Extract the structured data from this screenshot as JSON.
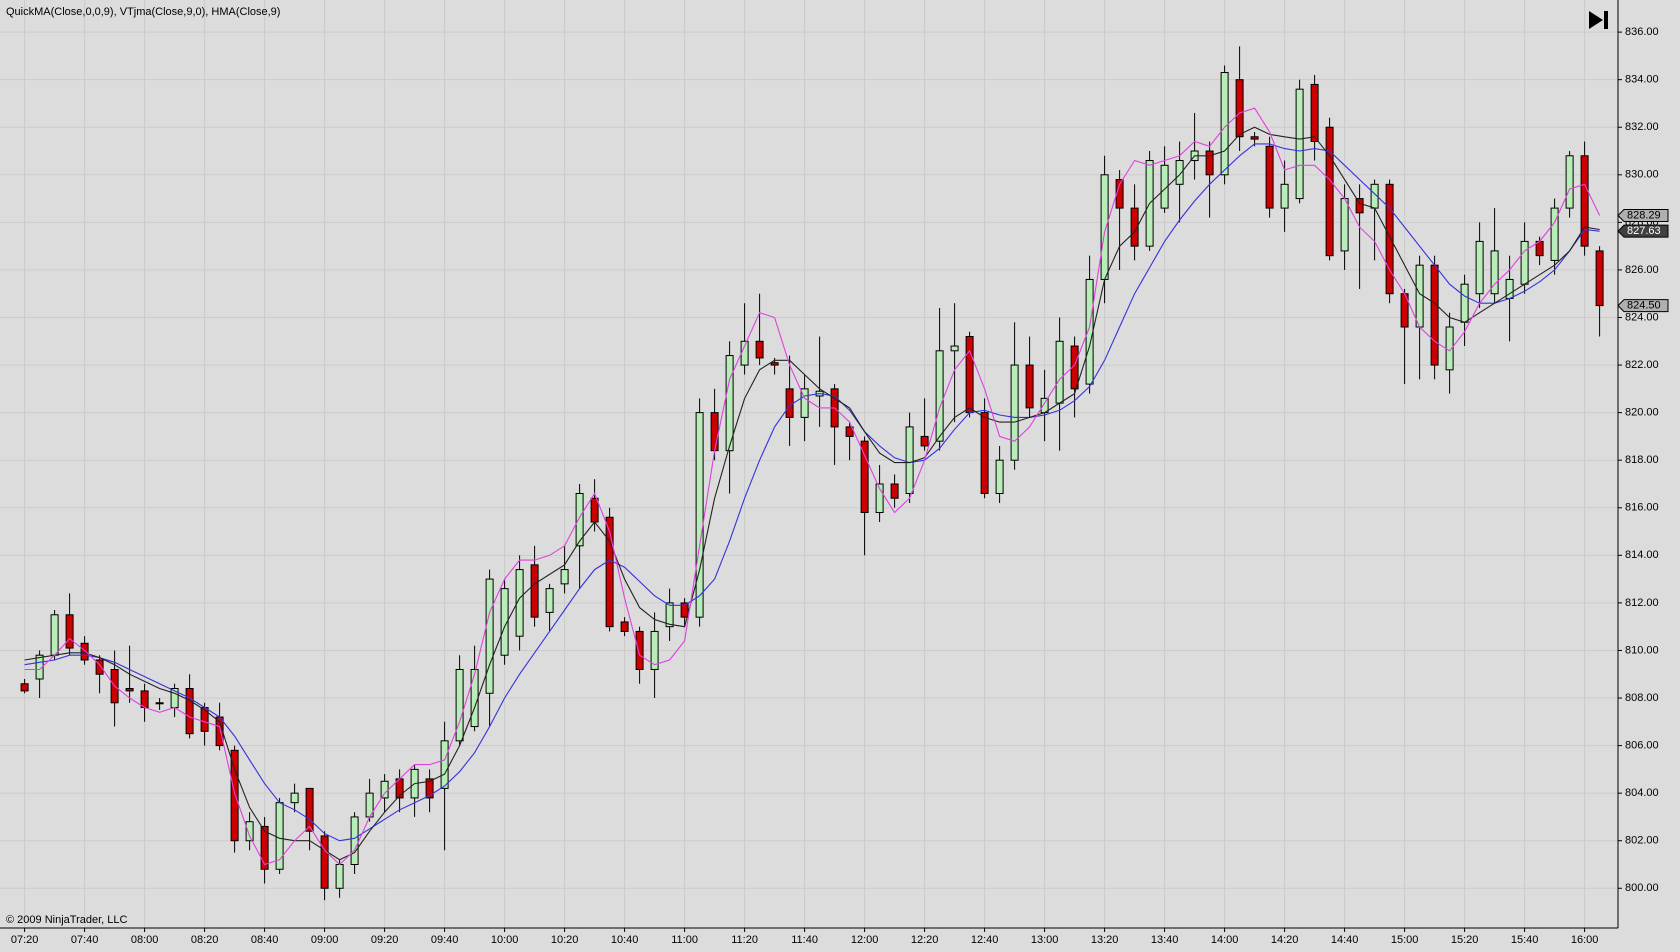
{
  "chart_data": {
    "type": "candlestick",
    "title": "QuickMA(Close,0,0,9), VTjma(Close,9,0), HMA(Close,9)",
    "copyright": "© 2009 NinjaTrader, LLC",
    "categories": [
      "07:20",
      null,
      null,
      null,
      "07:40",
      null,
      null,
      null,
      "08:00",
      null,
      null,
      null,
      "08:20",
      null,
      null,
      null,
      "08:40",
      null,
      null,
      null,
      "09:00",
      null,
      null,
      null,
      "09:20",
      null,
      null,
      null,
      "09:40",
      null,
      null,
      null,
      "10:00",
      null,
      null,
      null,
      "10:20",
      null,
      null,
      null,
      "10:40",
      null,
      null,
      null,
      "11:00",
      null,
      null,
      null,
      "11:20",
      null,
      null,
      null,
      "11:40",
      null,
      null,
      null,
      "12:00",
      null,
      null,
      null,
      "12:20",
      null,
      null,
      null,
      "12:40",
      null,
      null,
      null,
      "13:00",
      null,
      null,
      null,
      "13:20",
      null,
      null,
      null,
      "13:40",
      null,
      null,
      null,
      "14:00",
      null,
      null,
      null,
      "14:20",
      null,
      null,
      null,
      "14:40",
      null,
      null,
      null,
      "15:00",
      null,
      null,
      null,
      "15:20",
      null,
      null,
      null,
      "15:40",
      null,
      null,
      null,
      "16:00",
      null
    ],
    "open": [
      808.6,
      808.8,
      809.8,
      811.5,
      810.3,
      809.6,
      809.2,
      808.4,
      808.3,
      807.8,
      807.6,
      808.4,
      807.6,
      807.2,
      805.8,
      802.0,
      802.6,
      800.8,
      803.6,
      804.2,
      802.2,
      800.0,
      801.0,
      803.0,
      803.8,
      804.6,
      803.8,
      804.6,
      804.2,
      806.2,
      806.8,
      808.2,
      809.8,
      810.6,
      813.6,
      811.6,
      812.8,
      814.4,
      816.4,
      815.6,
      811.2,
      810.8,
      809.2,
      811.0,
      812.0,
      811.4,
      820.0,
      818.4,
      822.0,
      823.0,
      822.1,
      821.0,
      819.8,
      820.7,
      821.0,
      819.4,
      818.8,
      815.8,
      817.0,
      816.6,
      819.0,
      818.8,
      822.6,
      823.2,
      820.0,
      816.6,
      818.0,
      822.0,
      820.0,
      820.4,
      822.8,
      821.2,
      825.6,
      829.8,
      828.6,
      827.0,
      828.6,
      829.6,
      830.6,
      831.0,
      830.0,
      834.0,
      831.6,
      831.2,
      828.6,
      829.0,
      833.8,
      832.0,
      826.8,
      829.0,
      828.6,
      829.6,
      825.0,
      823.6,
      826.2,
      821.8,
      823.8,
      825.0,
      825.0,
      824.8,
      825.4,
      827.2,
      826.4,
      828.6,
      830.8,
      826.8
    ],
    "high": [
      808.8,
      810.0,
      811.7,
      812.4,
      810.6,
      809.8,
      810.0,
      810.2,
      808.6,
      808.0,
      808.6,
      809.0,
      807.8,
      807.8,
      806.0,
      803.2,
      803.0,
      803.8,
      804.4,
      804.2,
      802.4,
      801.2,
      803.2,
      804.6,
      804.8,
      805.0,
      805.2,
      805.0,
      807.0,
      809.8,
      810.2,
      813.4,
      813.0,
      814.0,
      814.4,
      812.8,
      814.4,
      817.0,
      817.2,
      816.0,
      811.4,
      811.0,
      811.6,
      812.6,
      812.2,
      820.6,
      821.0,
      823.0,
      824.6,
      825.0,
      822.3,
      822.4,
      821.6,
      823.2,
      821.2,
      819.6,
      819.0,
      817.8,
      817.4,
      820.0,
      820.6,
      824.4,
      824.6,
      823.4,
      820.6,
      818.6,
      823.8,
      823.2,
      821.8,
      824.0,
      823.2,
      826.6,
      830.8,
      830.2,
      829.6,
      831.0,
      831.2,
      831.4,
      832.6,
      831.4,
      834.6,
      835.4,
      831.8,
      831.6,
      830.6,
      834.0,
      834.2,
      832.4,
      829.6,
      829.6,
      829.8,
      829.8,
      825.2,
      826.6,
      826.6,
      824.2,
      825.8,
      828.0,
      828.6,
      826.6,
      828.0,
      827.4,
      829.0,
      831.0,
      831.4,
      827.0
    ],
    "low": [
      808.2,
      808.0,
      809.6,
      809.8,
      809.4,
      808.2,
      806.8,
      807.8,
      807.0,
      807.5,
      807.2,
      806.3,
      806.0,
      805.8,
      801.5,
      801.6,
      800.2,
      800.6,
      803.2,
      801.6,
      799.5,
      799.6,
      800.6,
      802.8,
      803.2,
      803.2,
      803.0,
      803.2,
      801.6,
      806.0,
      806.6,
      806.8,
      809.4,
      810.0,
      811.0,
      810.8,
      812.4,
      812.6,
      815.0,
      810.8,
      810.6,
      808.6,
      808.0,
      810.4,
      811.0,
      811.0,
      818.0,
      816.6,
      821.6,
      822.0,
      821.6,
      818.6,
      818.8,
      819.4,
      817.8,
      818.0,
      814.0,
      815.4,
      816.0,
      816.2,
      818.4,
      818.4,
      819.6,
      819.8,
      816.4,
      816.2,
      817.6,
      819.8,
      818.8,
      818.4,
      819.8,
      820.8,
      824.6,
      826.0,
      826.4,
      826.8,
      828.4,
      828.0,
      829.8,
      828.2,
      829.6,
      831.0,
      831.2,
      828.2,
      827.6,
      828.8,
      830.6,
      826.4,
      826.0,
      825.2,
      826.4,
      824.6,
      821.2,
      821.4,
      821.4,
      820.8,
      822.8,
      824.4,
      824.6,
      823.0,
      825.0,
      826.2,
      825.8,
      828.2,
      826.6,
      823.2
    ],
    "close": [
      808.3,
      809.8,
      811.5,
      810.1,
      809.6,
      809.0,
      807.8,
      808.3,
      807.6,
      807.8,
      808.4,
      806.5,
      806.6,
      806.0,
      802.0,
      802.8,
      800.8,
      803.6,
      804.0,
      802.4,
      800.0,
      801.0,
      803.0,
      804.0,
      804.5,
      803.8,
      805.0,
      803.8,
      806.2,
      809.2,
      809.2,
      813.0,
      812.6,
      813.4,
      811.4,
      812.6,
      813.4,
      816.6,
      815.4,
      811.0,
      810.8,
      809.2,
      810.8,
      812.0,
      811.4,
      820.0,
      818.4,
      822.4,
      823.0,
      822.3,
      822.0,
      819.8,
      821.0,
      820.9,
      819.4,
      819.0,
      815.8,
      817.0,
      816.4,
      819.4,
      818.6,
      822.6,
      822.8,
      820.0,
      816.6,
      818.0,
      822.0,
      820.2,
      820.6,
      823.0,
      821.0,
      825.6,
      830.0,
      828.6,
      827.0,
      830.6,
      830.4,
      830.6,
      831.0,
      830.0,
      834.3,
      831.6,
      831.5,
      828.6,
      829.6,
      833.6,
      831.4,
      826.6,
      829.0,
      828.4,
      829.6,
      825.0,
      823.6,
      826.2,
      822.0,
      823.6,
      825.4,
      827.2,
      826.8,
      825.6,
      827.2,
      826.6,
      828.6,
      830.8,
      827.0,
      824.5
    ],
    "up_color": "#b8ecb8",
    "down_color": "#cc0000",
    "outline_color": "#000000",
    "series": [
      {
        "color": "#3333dd",
        "values": [
          809.4,
          809.5,
          809.6,
          809.8,
          809.8,
          809.7,
          809.5,
          809.2,
          808.9,
          808.6,
          808.3,
          808.0,
          807.6,
          807.2,
          806.4,
          805.4,
          804.4,
          803.6,
          803.3,
          802.9,
          802.3,
          802.0,
          802.1,
          802.5,
          802.9,
          803.3,
          803.6,
          803.9,
          804.3,
          804.9,
          805.7,
          806.8,
          808.0,
          809.0,
          809.9,
          810.8,
          811.7,
          812.6,
          813.4,
          813.8,
          813.5,
          812.9,
          812.3,
          811.9,
          811.9,
          812.3,
          813.0,
          814.6,
          816.4,
          818.0,
          819.4,
          820.3,
          820.7,
          820.8,
          820.7,
          820.1,
          819.2,
          818.6,
          818.1,
          817.9,
          818.0,
          818.5,
          819.3,
          820.0,
          820.1,
          819.9,
          819.8,
          819.8,
          819.9,
          820.1,
          820.5,
          821.1,
          822.2,
          823.6,
          825.0,
          826.1,
          827.2,
          828.1,
          828.9,
          829.6,
          830.2,
          830.8,
          831.3,
          831.3,
          831.1,
          831.0,
          831.1,
          831.0,
          830.4,
          829.8,
          829.2,
          828.6,
          827.8,
          827.0,
          826.2,
          825.4,
          824.9,
          824.6,
          824.6,
          824.8,
          825.1,
          825.5,
          826.0,
          826.8,
          827.7,
          827.63
        ]
      },
      {
        "color": "#222222",
        "values": [
          809.6,
          809.7,
          809.8,
          809.9,
          809.9,
          809.7,
          809.4,
          809.0,
          808.7,
          808.4,
          808.2,
          807.9,
          807.5,
          807.0,
          805.0,
          803.4,
          802.4,
          802.1,
          802.0,
          802.0,
          801.6,
          801.2,
          801.5,
          802.4,
          803.2,
          803.9,
          804.4,
          804.5,
          804.8,
          806.0,
          807.6,
          809.4,
          811.0,
          812.2,
          812.8,
          813.2,
          813.6,
          814.6,
          815.4,
          814.6,
          813.0,
          811.8,
          811.3,
          811.1,
          811.0,
          813.4,
          816.4,
          818.6,
          820.6,
          821.8,
          822.2,
          822.2,
          821.6,
          821.0,
          820.6,
          820.2,
          819.2,
          818.3,
          817.9,
          817.9,
          818.1,
          819.0,
          819.8,
          820.2,
          819.8,
          819.6,
          819.6,
          819.8,
          820.0,
          820.4,
          820.8,
          822.8,
          825.6,
          827.0,
          827.6,
          828.8,
          829.4,
          830.0,
          830.8,
          830.8,
          831.0,
          831.7,
          832.0,
          831.7,
          831.6,
          831.5,
          831.6,
          830.8,
          829.8,
          828.8,
          828.6,
          827.4,
          826.2,
          825.0,
          824.6,
          824.0,
          823.8,
          824.2,
          824.6,
          825.0,
          825.4,
          825.8,
          826.2,
          826.8,
          827.8,
          827.7
        ]
      },
      {
        "color": "#e040e0",
        "values": [
          809.2,
          809.2,
          809.8,
          810.5,
          810.0,
          809.4,
          808.5,
          808.0,
          807.6,
          807.4,
          807.6,
          807.2,
          807.0,
          806.8,
          804.0,
          802.2,
          801.0,
          801.2,
          802.0,
          802.6,
          801.6,
          801.0,
          801.6,
          803.0,
          804.0,
          804.6,
          805.2,
          805.2,
          805.4,
          807.0,
          809.0,
          811.6,
          813.0,
          813.8,
          813.8,
          814.0,
          814.4,
          815.6,
          816.6,
          815.0,
          812.2,
          809.8,
          809.4,
          809.6,
          810.4,
          814.4,
          818.4,
          821.4,
          822.8,
          824.2,
          824.0,
          822.0,
          820.6,
          820.2,
          820.2,
          819.6,
          818.2,
          816.8,
          815.8,
          816.4,
          818.0,
          820.2,
          821.8,
          822.6,
          821.0,
          819.0,
          818.8,
          819.4,
          820.4,
          821.4,
          822.0,
          823.6,
          827.6,
          829.6,
          830.6,
          830.4,
          830.6,
          830.8,
          831.4,
          831.2,
          832.0,
          832.6,
          832.8,
          831.8,
          830.2,
          830.4,
          830.4,
          829.8,
          829.0,
          827.8,
          827.2,
          826.0,
          825.0,
          823.6,
          823.0,
          822.6,
          823.4,
          824.6,
          825.4,
          826.0,
          826.8,
          827.2,
          828.0,
          829.4,
          829.6,
          828.29
        ]
      }
    ],
    "price_markers": [
      828.29,
      827.63,
      {
        "value": 824.5,
        "label": "824.50"
      }
    ],
    "ylim": [
      798.33,
      837.35
    ],
    "yticks": [
      {
        "value": 800,
        "label": "800.00"
      },
      {
        "value": 802,
        "label": "802.00"
      },
      {
        "value": 804,
        "label": "804.00"
      },
      {
        "value": 806,
        "label": "806.00"
      },
      {
        "value": 808,
        "label": "808.00"
      },
      {
        "value": 810,
        "label": "810.00"
      },
      {
        "value": 812,
        "label": "812.00"
      },
      {
        "value": 814,
        "label": "814.00"
      },
      {
        "value": 816,
        "label": "816.00"
      },
      {
        "value": 818,
        "label": "818.00"
      },
      {
        "value": 820,
        "label": "820.00"
      },
      {
        "value": 822,
        "label": "822.00"
      },
      {
        "value": 824,
        "label": "824.00"
      },
      {
        "value": 826,
        "label": "826.00"
      },
      {
        "value": 828,
        "label": "828.00"
      },
      {
        "value": 830,
        "label": "830.00"
      },
      {
        "value": 832,
        "label": "832.00"
      },
      {
        "value": 834,
        "label": "834.00"
      },
      {
        "value": 836,
        "label": "836.00"
      }
    ],
    "grid": true
  }
}
